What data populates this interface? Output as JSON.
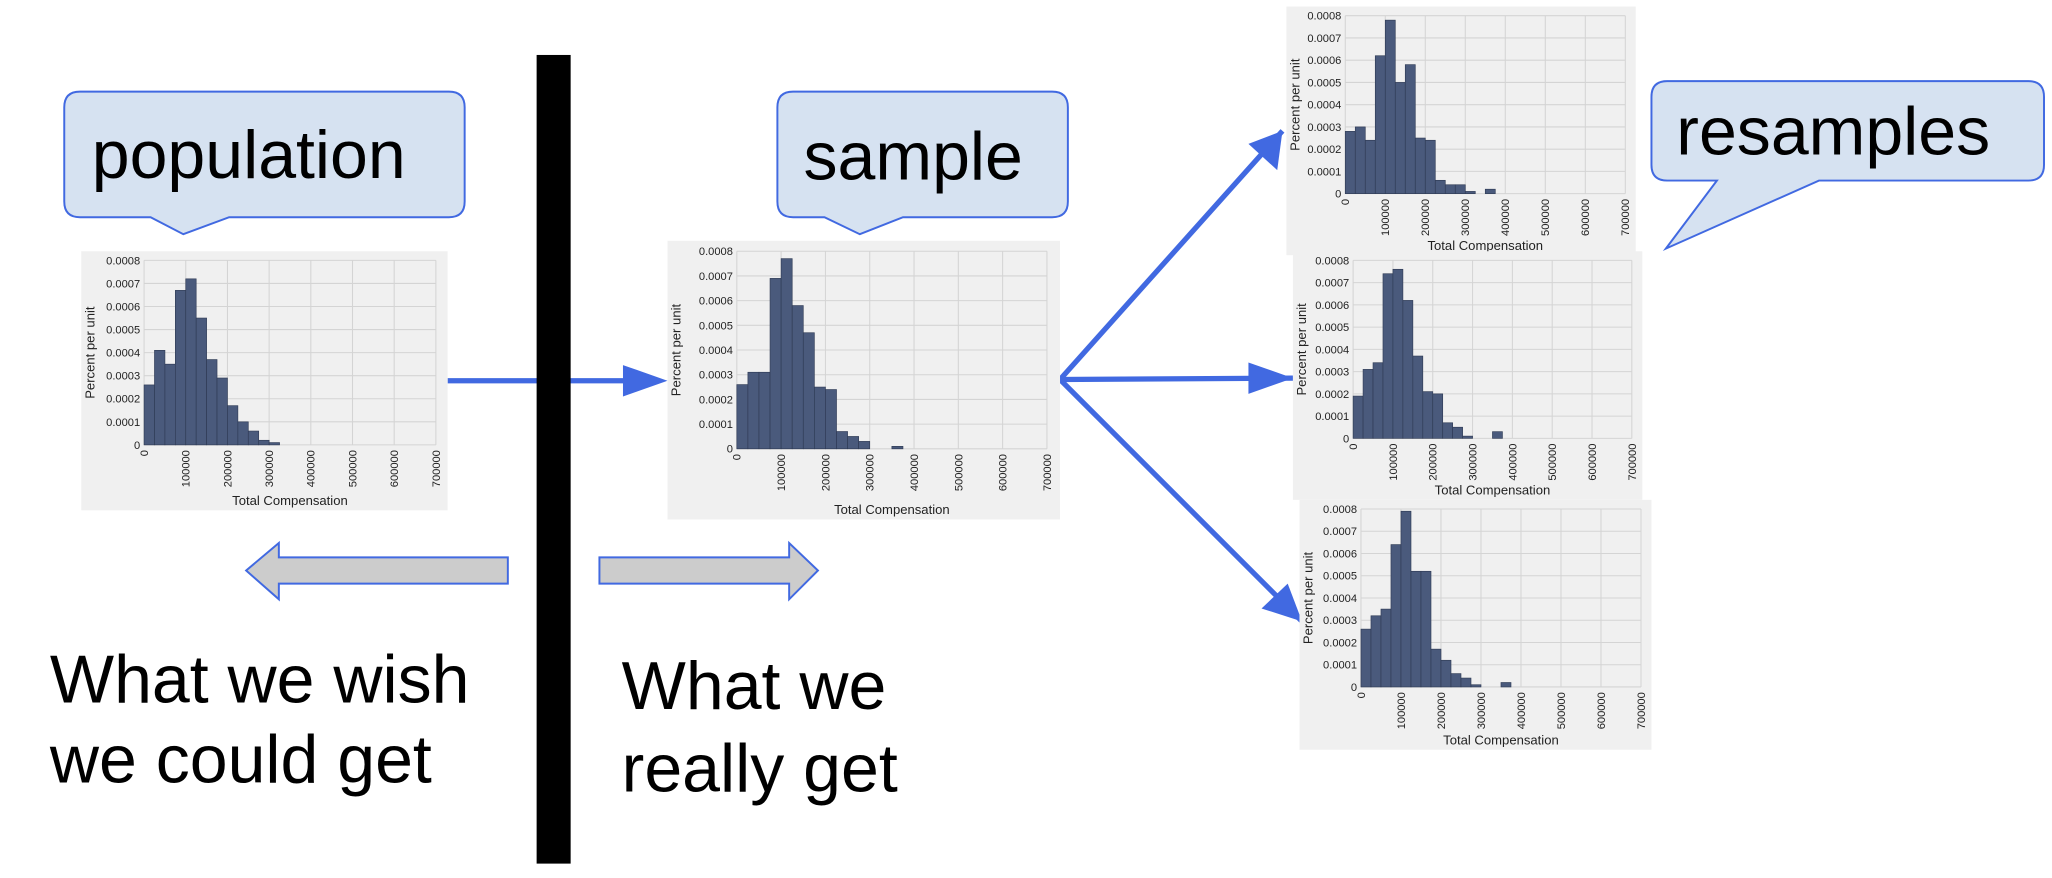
{
  "labels": {
    "population": "population",
    "sample": "sample",
    "resamples": "resamples",
    "wish": [
      "What we wish",
      "we could get"
    ],
    "really": [
      "What we",
      "really get"
    ]
  },
  "chart_data": [
    {
      "type": "histogram",
      "bins": [
        0,
        25000,
        50000,
        75000,
        100000,
        125000,
        150000,
        175000,
        200000,
        225000,
        250000,
        275000,
        300000,
        325000
      ],
      "values": [
        0.00026,
        0.00041,
        0.00035,
        0.00067,
        0.00072,
        0.00055,
        0.00037,
        0.00029,
        0.00017,
        0.0001,
        6e-05,
        2e-05,
        1e-05
      ],
      "color": "#4a5a7c",
      "xlim": [
        0,
        700000
      ],
      "ylim": [
        0,
        0.0008
      ],
      "xticks": [
        0,
        100000,
        200000,
        300000,
        400000,
        500000,
        600000,
        700000
      ],
      "yticks": [
        0,
        0.0001,
        0.0002,
        0.0003,
        0.0004,
        0.0005,
        0.0006,
        0.0007,
        0.0008
      ],
      "xlabel": "Total Compensation",
      "ylabel": "Percent per unit",
      "grid": true
    },
    {
      "type": "histogram",
      "bins": [
        0,
        25000,
        50000,
        75000,
        100000,
        125000,
        150000,
        175000,
        200000,
        225000,
        250000,
        275000,
        300000,
        325000,
        350000,
        375000
      ],
      "values": [
        0.00026,
        0.00031,
        0.00031,
        0.00069,
        0.00077,
        0.00058,
        0.00047,
        0.00025,
        0.00024,
        7e-05,
        5e-05,
        3e-05,
        0,
        0,
        1e-05
      ],
      "color": "#4a5a7c",
      "xlim": [
        0,
        700000
      ],
      "ylim": [
        0,
        0.0008
      ],
      "xticks": [
        0,
        100000,
        200000,
        300000,
        400000,
        500000,
        600000,
        700000
      ],
      "yticks": [
        0,
        0.0001,
        0.0002,
        0.0003,
        0.0004,
        0.0005,
        0.0006,
        0.0007,
        0.0008
      ],
      "xlabel": "Total Compensation",
      "ylabel": "Percent per unit",
      "grid": true
    },
    {
      "type": "histogram",
      "bins": [
        0,
        25000,
        50000,
        75000,
        100000,
        125000,
        150000,
        175000,
        200000,
        225000,
        250000,
        275000,
        300000,
        325000,
        350000,
        375000
      ],
      "values": [
        0.00028,
        0.0003,
        0.00024,
        0.00062,
        0.00078,
        0.0005,
        0.00058,
        0.00025,
        0.00024,
        6e-05,
        4e-05,
        4e-05,
        1e-05,
        0,
        2e-05
      ],
      "color": "#4a5a7c",
      "xlim": [
        0,
        700000
      ],
      "ylim": [
        0,
        0.0008
      ],
      "xticks": [
        0,
        100000,
        200000,
        300000,
        400000,
        500000,
        600000,
        700000
      ],
      "yticks": [
        0,
        0.0001,
        0.0002,
        0.0003,
        0.0004,
        0.0005,
        0.0006,
        0.0007,
        0.0008
      ],
      "xlabel": "Total Compensation",
      "ylabel": "Percent per unit",
      "grid": true
    },
    {
      "type": "histogram",
      "bins": [
        0,
        25000,
        50000,
        75000,
        100000,
        125000,
        150000,
        175000,
        200000,
        225000,
        250000,
        275000,
        300000,
        325000,
        350000,
        375000
      ],
      "values": [
        0.00019,
        0.00031,
        0.00034,
        0.00074,
        0.00076,
        0.00062,
        0.00037,
        0.00021,
        0.0002,
        7e-05,
        5e-05,
        1e-05,
        0,
        0,
        3e-05
      ],
      "color": "#4a5a7c",
      "xlim": [
        0,
        700000
      ],
      "ylim": [
        0,
        0.0008
      ],
      "xticks": [
        0,
        100000,
        200000,
        300000,
        400000,
        500000,
        600000,
        700000
      ],
      "yticks": [
        0,
        0.0001,
        0.0002,
        0.0003,
        0.0004,
        0.0005,
        0.0006,
        0.0007,
        0.0008
      ],
      "xlabel": "Total Compensation",
      "ylabel": "Percent per unit",
      "grid": true
    },
    {
      "type": "histogram",
      "bins": [
        0,
        25000,
        50000,
        75000,
        100000,
        125000,
        150000,
        175000,
        200000,
        225000,
        250000,
        275000,
        300000,
        325000,
        350000,
        375000
      ],
      "values": [
        0.00026,
        0.00032,
        0.00035,
        0.00064,
        0.00079,
        0.00052,
        0.00052,
        0.00017,
        0.00012,
        6e-05,
        4e-05,
        1e-05,
        0,
        0,
        2e-05
      ],
      "color": "#4a5a7c",
      "xlim": [
        0,
        700000
      ],
      "ylim": [
        0,
        0.0008
      ],
      "xticks": [
        0,
        100000,
        200000,
        300000,
        400000,
        500000,
        600000,
        700000
      ],
      "yticks": [
        0,
        0.0001,
        0.0002,
        0.0003,
        0.0004,
        0.0005,
        0.0006,
        0.0007,
        0.0008
      ],
      "xlabel": "Total Compensation",
      "ylabel": "Percent per unit",
      "grid": true
    }
  ]
}
